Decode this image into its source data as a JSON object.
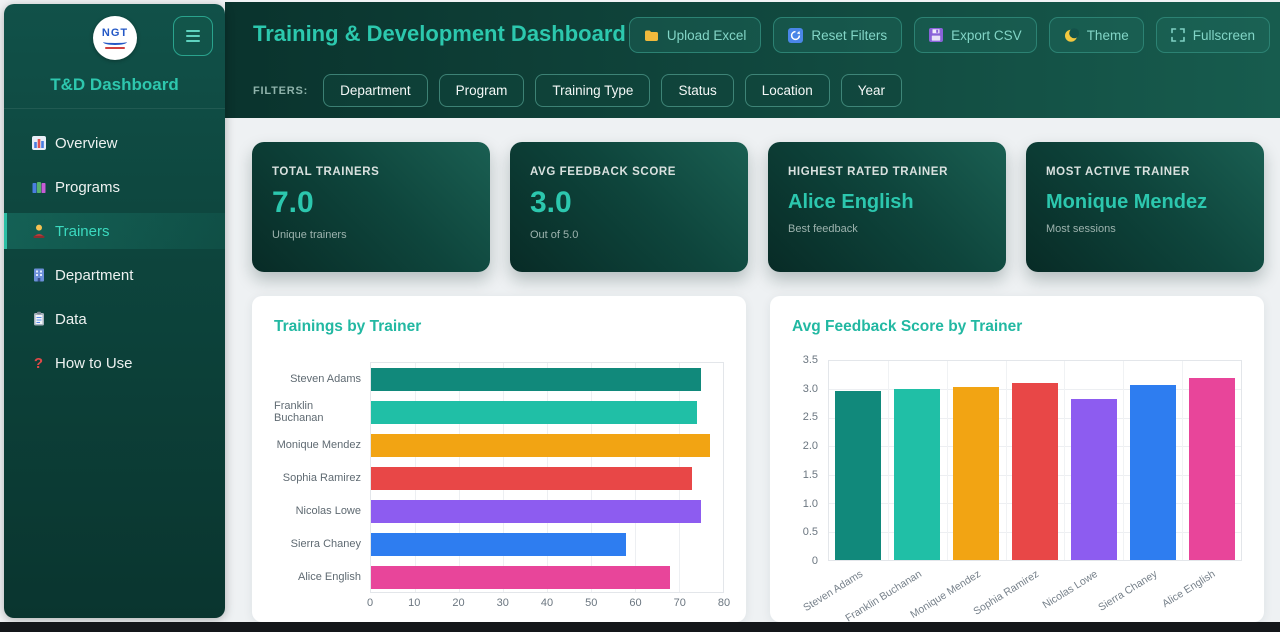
{
  "colors": {
    "accent": "#2cc8ae",
    "sidebar_bg": "#0d453d",
    "header_bg": "#11493f",
    "card_bg": "#0e453c",
    "page_bg": "#eef1f3"
  },
  "sidebar": {
    "logo_text": "NGT",
    "title": "T&D Dashboard",
    "items": [
      {
        "label": "Overview",
        "icon": "bar-chart-icon",
        "active": false
      },
      {
        "label": "Programs",
        "icon": "books-icon",
        "active": false
      },
      {
        "label": "Trainers",
        "icon": "teacher-icon",
        "active": true
      },
      {
        "label": "Department",
        "icon": "building-icon",
        "active": false
      },
      {
        "label": "Data",
        "icon": "clipboard-icon",
        "active": false
      },
      {
        "label": "How to Use",
        "icon": "question-icon",
        "active": false
      }
    ]
  },
  "header": {
    "title": "Training & Development Dashboard",
    "buttons": [
      {
        "label": "Upload Excel",
        "icon": "folder-icon"
      },
      {
        "label": "Reset Filters",
        "icon": "reset-icon"
      },
      {
        "label": "Export CSV",
        "icon": "floppy-icon"
      },
      {
        "label": "Theme",
        "icon": "moon-icon"
      },
      {
        "label": "Fullscreen",
        "icon": "fullscreen-icon"
      }
    ],
    "filters_label": "FILTERS:",
    "filters": [
      "Department",
      "Program",
      "Training Type",
      "Status",
      "Location",
      "Year"
    ]
  },
  "kpis": [
    {
      "label": "TOTAL TRAINERS",
      "value": "7.0",
      "sub": "Unique trainers"
    },
    {
      "label": "AVG FEEDBACK SCORE",
      "value": "3.0",
      "sub": "Out of 5.0"
    },
    {
      "label": "HIGHEST RATED TRAINER",
      "value": "Alice English",
      "sub": "Best feedback"
    },
    {
      "label": "MOST ACTIVE TRAINER",
      "value": "Monique Mendez",
      "sub": "Most sessions"
    }
  ],
  "chart_data": [
    {
      "type": "bar",
      "orientation": "horizontal",
      "title": "Trainings by Trainer",
      "categories": [
        "Steven Adams",
        "Franklin Buchanan",
        "Monique Mendez",
        "Sophia Ramirez",
        "Nicolas Lowe",
        "Sierra Chaney",
        "Alice English"
      ],
      "values": [
        75,
        74,
        77,
        73,
        75,
        58,
        68
      ],
      "colors": [
        "#11897b",
        "#20bfa6",
        "#f2a413",
        "#e84747",
        "#8d5cf0",
        "#2e7df0",
        "#e8459a"
      ],
      "xlabel": "",
      "ylabel": "",
      "xlim": [
        0,
        80
      ],
      "xticks": [
        "0",
        "10",
        "20",
        "30",
        "40",
        "50",
        "60",
        "70",
        "80"
      ],
      "grid": true
    },
    {
      "type": "bar",
      "orientation": "vertical",
      "title": "Avg Feedback Score by Trainer",
      "categories": [
        "Steven Adams",
        "Franklin Buchanan",
        "Monique Mendez",
        "Sophia Ramirez",
        "Nicolas Lowe",
        "Sierra Chaney",
        "Alice English"
      ],
      "values": [
        2.98,
        3.01,
        3.04,
        3.11,
        2.84,
        3.07,
        3.21
      ],
      "colors": [
        "#11897b",
        "#20bfa6",
        "#f2a413",
        "#e84747",
        "#8d5cf0",
        "#2e7df0",
        "#e8459a"
      ],
      "xlabel": "",
      "ylabel": "",
      "ylim": [
        0,
        3.5
      ],
      "yticks": [
        "3.5",
        "3.0",
        "2.5",
        "2.0",
        "1.5",
        "1.0",
        "0.5",
        "0"
      ],
      "grid": true
    }
  ]
}
